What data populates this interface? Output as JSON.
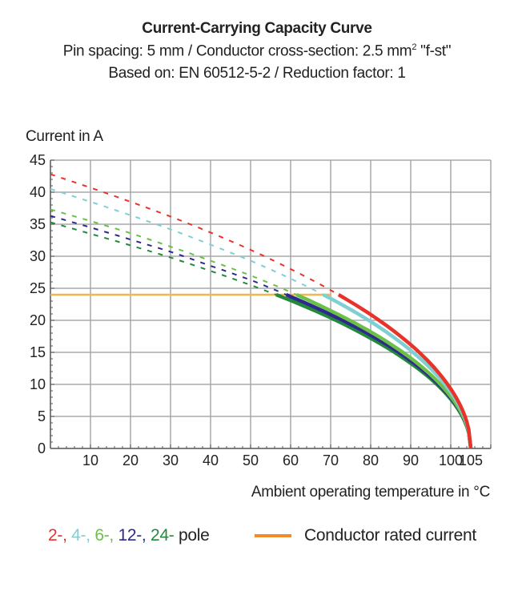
{
  "chart_data": {
    "type": "line",
    "title": "Current-Carrying Capacity Curve",
    "subtitle": [
      "Pin spacing: 5 mm / Conductor cross-section: 2.5 mm² \"f-st\"",
      "Based on: EN 60512-5-2 / Reduction factor: 1"
    ],
    "xlabel": "Ambient operating temperature in °C",
    "ylabel": "Current in A",
    "xlim": [
      0,
      110
    ],
    "ylim": [
      0,
      45
    ],
    "x_ticks": [
      "10",
      "20",
      "30",
      "40",
      "50",
      "60",
      "70",
      "80",
      "90",
      "100",
      "105"
    ],
    "x_tick_values": [
      10,
      20,
      30,
      40,
      50,
      60,
      70,
      80,
      90,
      100,
      105
    ],
    "y_ticks": [
      "0",
      "5",
      "10",
      "15",
      "20",
      "25",
      "30",
      "35",
      "40",
      "45"
    ],
    "y_tick_values": [
      0,
      5,
      10,
      15,
      20,
      25,
      30,
      35,
      40,
      45
    ],
    "grid": true,
    "x": [
      0,
      10,
      20,
      30,
      40,
      50,
      60,
      70,
      80,
      90,
      100,
      105
    ],
    "series": [
      {
        "name": "2-",
        "color": "#e8322a",
        "values": [
          42.8,
          40.7,
          38.5,
          36.2,
          33.7,
          31.0,
          28.0,
          24.7,
          20.9,
          16.2,
          9.3,
          0
        ]
      },
      {
        "name": "4-",
        "color": "#7fcfd3",
        "values": [
          40.5,
          38.5,
          36.4,
          34.2,
          31.8,
          29.3,
          26.5,
          23.4,
          19.8,
          15.3,
          8.8,
          0
        ]
      },
      {
        "name": "6-",
        "color": "#6cc04a",
        "values": [
          37.3,
          35.5,
          33.6,
          31.5,
          29.3,
          27.0,
          24.4,
          21.5,
          18.2,
          14.1,
          8.1,
          0
        ]
      },
      {
        "name": "12-",
        "color": "#2e2a8c",
        "values": [
          36.3,
          34.5,
          32.6,
          30.7,
          28.5,
          26.3,
          23.7,
          20.9,
          17.7,
          13.7,
          7.9,
          0
        ]
      },
      {
        "name": "24-",
        "color": "#238a3c",
        "values": [
          35.3,
          33.5,
          31.7,
          29.8,
          27.7,
          25.5,
          23.1,
          20.4,
          17.2,
          13.3,
          7.7,
          0
        ]
      }
    ],
    "rated_current": {
      "name": "Conductor rated current",
      "value": 24,
      "color": "#f5b54e",
      "legend_color": "#f08a2a"
    },
    "legend": {
      "pole_suffix": "pole",
      "separator": ", "
    }
  }
}
